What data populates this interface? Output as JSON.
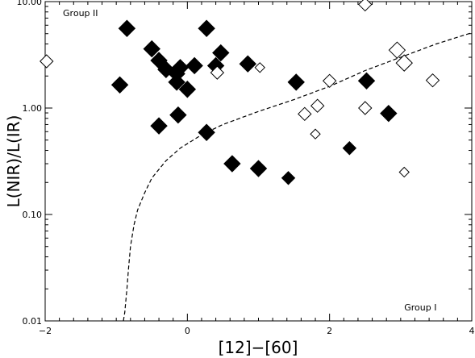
{
  "chart_data": {
    "type": "scatter",
    "xlabel": "[12]−[60]",
    "ylabel": "L(NIR)/L(IR)",
    "xlim": [
      -2,
      4
    ],
    "ylim": [
      0.01,
      10
    ],
    "y_scale": "log",
    "x_ticks": [
      -2,
      0,
      2,
      4
    ],
    "x_tick_labels": [
      "−2",
      "0",
      "2",
      "4"
    ],
    "x_minor_step": 0.2,
    "y_ticks": [
      0.01,
      0.1,
      1,
      10
    ],
    "y_tick_labels": [
      "0.01",
      "0.10",
      "1.00",
      "10.00"
    ],
    "grid": false,
    "annotations": [
      {
        "text": "Group II",
        "x": -1.75,
        "y": 7.3
      },
      {
        "text": "Group I",
        "x": 3.05,
        "y": 0.0125
      }
    ],
    "series": [
      {
        "marker": "filled-diamond",
        "points": [
          {
            "x": -0.85,
            "y": 5.6,
            "size": "large"
          },
          {
            "x": -0.5,
            "y": 3.6,
            "size": "large"
          },
          {
            "x": -0.4,
            "y": 2.8,
            "size": "large"
          },
          {
            "x": -0.3,
            "y": 2.3,
            "size": "large"
          },
          {
            "x": -0.15,
            "y": 2.1,
            "size": "large"
          },
          {
            "x": -0.1,
            "y": 2.4,
            "size": "large"
          },
          {
            "x": 0.1,
            "y": 2.5,
            "size": "large"
          },
          {
            "x": -0.15,
            "y": 1.75,
            "size": "large"
          },
          {
            "x": 0.0,
            "y": 1.5,
            "size": "large"
          },
          {
            "x": -0.95,
            "y": 1.65,
            "size": "large"
          },
          {
            "x": -0.4,
            "y": 0.68,
            "size": "large"
          },
          {
            "x": -0.13,
            "y": 0.86,
            "size": "large"
          },
          {
            "x": 0.27,
            "y": 5.6,
            "size": "large"
          },
          {
            "x": 0.4,
            "y": 2.5,
            "size": "large"
          },
          {
            "x": 0.47,
            "y": 3.3,
            "size": "large"
          },
          {
            "x": 0.85,
            "y": 2.6,
            "size": "large"
          },
          {
            "x": 0.27,
            "y": 0.59,
            "size": "large"
          },
          {
            "x": 0.63,
            "y": 0.3,
            "size": "large"
          },
          {
            "x": 1.0,
            "y": 0.27,
            "size": "large"
          },
          {
            "x": 1.42,
            "y": 0.22,
            "size": "medium"
          },
          {
            "x": 1.53,
            "y": 1.75,
            "size": "large"
          },
          {
            "x": 2.28,
            "y": 0.42,
            "size": "medium"
          },
          {
            "x": 2.52,
            "y": 1.8,
            "size": "large"
          },
          {
            "x": 2.83,
            "y": 0.89,
            "size": "large"
          }
        ]
      },
      {
        "marker": "open-diamond",
        "points": [
          {
            "x": -1.98,
            "y": 2.75,
            "size": "medium"
          },
          {
            "x": 0.42,
            "y": 2.15,
            "size": "medium"
          },
          {
            "x": 1.02,
            "y": 2.4,
            "size": "small"
          },
          {
            "x": 1.65,
            "y": 0.88,
            "size": "medium"
          },
          {
            "x": 1.83,
            "y": 1.05,
            "size": "medium"
          },
          {
            "x": 2.0,
            "y": 1.8,
            "size": "medium"
          },
          {
            "x": 1.8,
            "y": 0.57,
            "size": "small"
          },
          {
            "x": 2.5,
            "y": 1.0,
            "size": "medium"
          },
          {
            "x": 2.5,
            "y": 9.4,
            "size": "medium"
          },
          {
            "x": 2.95,
            "y": 3.5,
            "size": "large"
          },
          {
            "x": 3.05,
            "y": 2.65,
            "size": "large"
          },
          {
            "x": 3.05,
            "y": 0.25,
            "size": "small"
          },
          {
            "x": 3.45,
            "y": 1.82,
            "size": "medium"
          }
        ]
      }
    ],
    "curve": {
      "style": "dashed",
      "points": [
        [
          -0.9,
          0.01
        ],
        [
          -0.88,
          0.012
        ],
        [
          -0.85,
          0.02
        ],
        [
          -0.83,
          0.03
        ],
        [
          -0.8,
          0.05
        ],
        [
          -0.75,
          0.08
        ],
        [
          -0.7,
          0.11
        ],
        [
          -0.6,
          0.16
        ],
        [
          -0.5,
          0.22
        ],
        [
          -0.3,
          0.32
        ],
        [
          -0.1,
          0.42
        ],
        [
          0.2,
          0.56
        ],
        [
          0.5,
          0.7
        ],
        [
          1.0,
          0.93
        ],
        [
          1.5,
          1.2
        ],
        [
          2.0,
          1.6
        ],
        [
          2.5,
          2.25
        ],
        [
          3.0,
          3.0
        ],
        [
          3.5,
          4.0
        ],
        [
          4.0,
          5.1
        ]
      ]
    }
  }
}
